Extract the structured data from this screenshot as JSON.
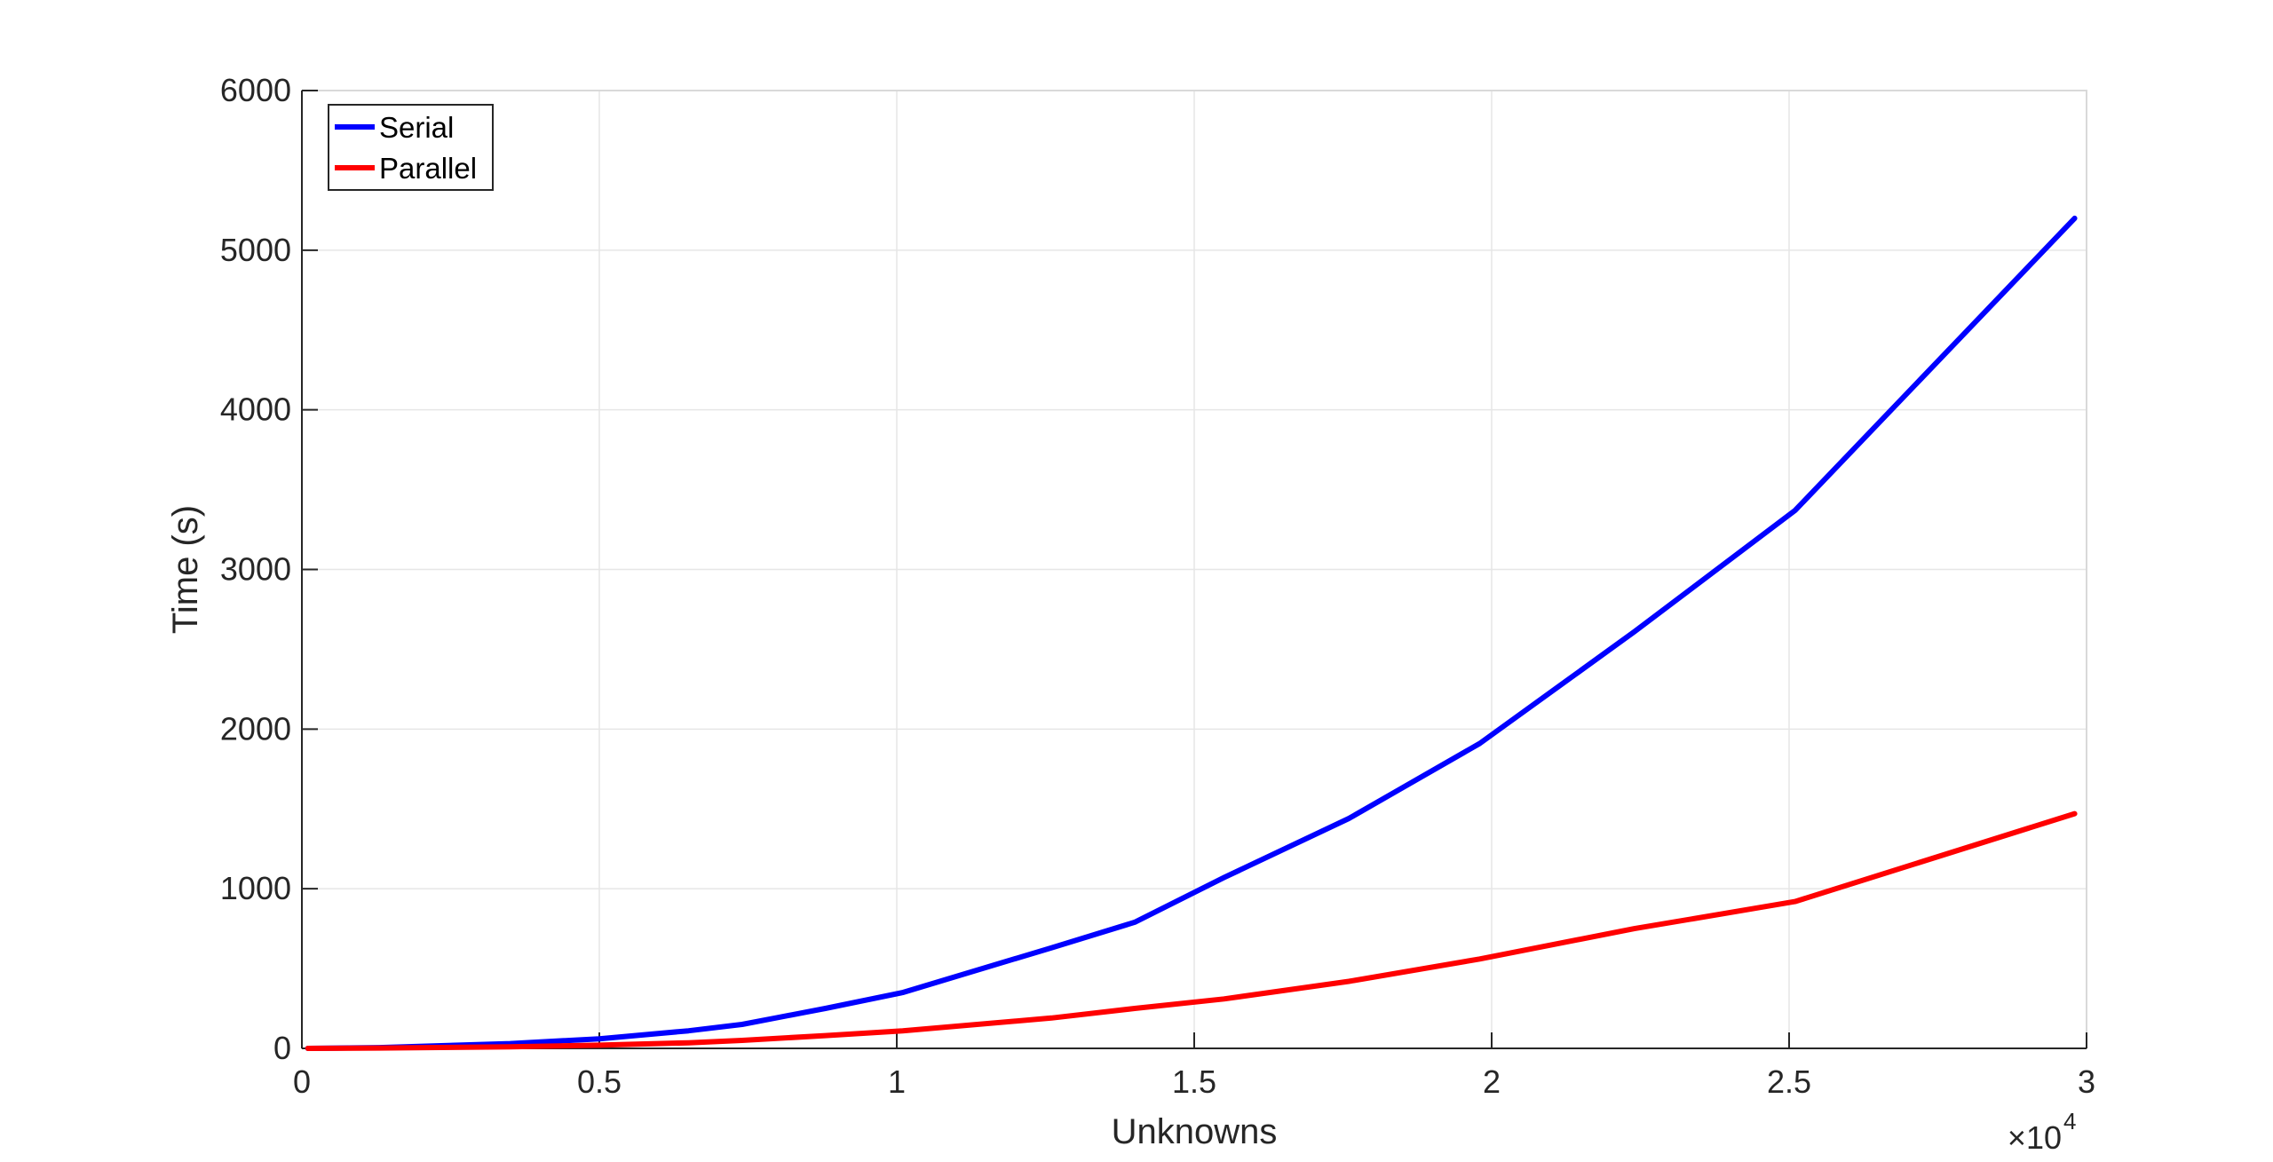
{
  "chart_data": {
    "type": "line",
    "title": "",
    "xlabel": "Unknowns",
    "ylabel": "Time (s)",
    "x_exponent_label": "×10",
    "x_exponent_power": "4",
    "xlim": [
      0,
      30000
    ],
    "ylim": [
      0,
      6000
    ],
    "x_ticks": [
      0,
      5000,
      10000,
      15000,
      20000,
      25000,
      30000
    ],
    "x_tick_labels": [
      "0",
      "0.5",
      "1",
      "1.5",
      "2",
      "2.5",
      "3"
    ],
    "y_ticks": [
      0,
      1000,
      2000,
      3000,
      4000,
      5000,
      6000
    ],
    "y_tick_labels": [
      "0",
      "1000",
      "2000",
      "3000",
      "4000",
      "5000",
      "6000"
    ],
    "grid": true,
    "legend_position": "top-left",
    "x": [
      100,
      1300,
      3500,
      5000,
      6500,
      7400,
      8800,
      10100,
      12600,
      14000,
      15500,
      17600,
      19800,
      22400,
      25100,
      29800
    ],
    "series": [
      {
        "name": "Serial",
        "color": "#0000ff",
        "values": [
          0,
          5,
          30,
          60,
          110,
          150,
          250,
          350,
          630,
          790,
          1070,
          1440,
          1910,
          2610,
          3370,
          5200
        ]
      },
      {
        "name": "Parallel",
        "color": "#ff0000",
        "values": [
          0,
          2,
          10,
          20,
          35,
          50,
          80,
          110,
          190,
          250,
          310,
          420,
          560,
          750,
          920,
          1470
        ]
      }
    ]
  }
}
